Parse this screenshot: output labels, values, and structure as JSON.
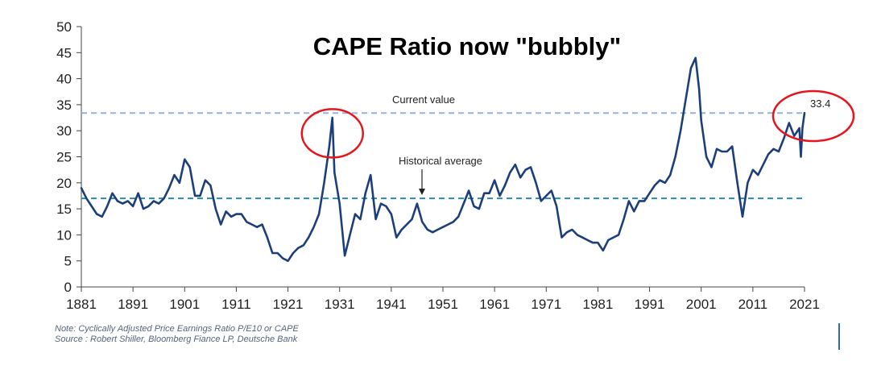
{
  "chart_data": {
    "type": "line",
    "title": "CAPE Ratio now \"bubbly\"",
    "xlabel": "",
    "ylabel": "",
    "xlim": [
      1881,
      2021
    ],
    "ylim": [
      0,
      50
    ],
    "x_ticks": [
      "1881",
      "1891",
      "1901",
      "1911",
      "1921",
      "1931",
      "1941",
      "1951",
      "1961",
      "1971",
      "1981",
      "1991",
      "2001",
      "2011",
      "2021"
    ],
    "y_ticks": [
      0,
      5,
      10,
      15,
      20,
      25,
      30,
      35,
      40,
      45,
      50
    ],
    "grid": false,
    "colors": {
      "series": "#1c3f7c",
      "current_line": "#8fb4e0",
      "average_line": "#2a8bb0",
      "circles": "#e8141c"
    },
    "series": [
      {
        "points": [
          [
            1881,
            19.0
          ],
          [
            1882,
            17.0
          ],
          [
            1883,
            15.5
          ],
          [
            1884,
            14.0
          ],
          [
            1885,
            13.5
          ],
          [
            1886,
            15.5
          ],
          [
            1887,
            18.0
          ],
          [
            1888,
            16.5
          ],
          [
            1889,
            16.0
          ],
          [
            1890,
            16.5
          ],
          [
            1891,
            15.5
          ],
          [
            1892,
            18.0
          ],
          [
            1893,
            15.0
          ],
          [
            1894,
            15.5
          ],
          [
            1895,
            16.5
          ],
          [
            1896,
            16.0
          ],
          [
            1897,
            17.0
          ],
          [
            1898,
            19.0
          ],
          [
            1899,
            21.5
          ],
          [
            1900,
            20.0
          ],
          [
            1901,
            24.5
          ],
          [
            1902,
            23.0
          ],
          [
            1903,
            17.5
          ],
          [
            1904,
            17.5
          ],
          [
            1905,
            20.5
          ],
          [
            1906,
            19.5
          ],
          [
            1907,
            15.0
          ],
          [
            1908,
            12.0
          ],
          [
            1909,
            14.5
          ],
          [
            1910,
            13.5
          ],
          [
            1911,
            14.0
          ],
          [
            1912,
            14.0
          ],
          [
            1913,
            12.5
          ],
          [
            1914,
            12.0
          ],
          [
            1915,
            11.5
          ],
          [
            1916,
            12.0
          ],
          [
            1917,
            9.5
          ],
          [
            1918,
            6.5
          ],
          [
            1919,
            6.5
          ],
          [
            1920,
            5.5
          ],
          [
            1921,
            5.0
          ],
          [
            1922,
            6.5
          ],
          [
            1923,
            7.5
          ],
          [
            1924,
            8.0
          ],
          [
            1925,
            9.5
          ],
          [
            1926,
            11.5
          ],
          [
            1927,
            14.0
          ],
          [
            1928,
            20.0
          ],
          [
            1929,
            27.0
          ],
          [
            1929.6,
            32.5
          ],
          [
            1930,
            22.0
          ],
          [
            1931,
            16.0
          ],
          [
            1932,
            6.0
          ],
          [
            1933,
            10.0
          ],
          [
            1934,
            14.0
          ],
          [
            1935,
            13.0
          ],
          [
            1936,
            18.0
          ],
          [
            1937,
            21.5
          ],
          [
            1938,
            13.0
          ],
          [
            1939,
            16.0
          ],
          [
            1940,
            15.5
          ],
          [
            1941,
            14.0
          ],
          [
            1942,
            9.5
          ],
          [
            1943,
            11.0
          ],
          [
            1944,
            12.0
          ],
          [
            1945,
            13.0
          ],
          [
            1946,
            16.0
          ],
          [
            1947,
            12.5
          ],
          [
            1948,
            11.0
          ],
          [
            1949,
            10.5
          ],
          [
            1950,
            11.0
          ],
          [
            1951,
            11.5
          ],
          [
            1952,
            12.0
          ],
          [
            1953,
            12.5
          ],
          [
            1954,
            13.5
          ],
          [
            1955,
            16.0
          ],
          [
            1956,
            18.5
          ],
          [
            1957,
            15.5
          ],
          [
            1958,
            15.0
          ],
          [
            1959,
            18.0
          ],
          [
            1960,
            18.0
          ],
          [
            1961,
            20.5
          ],
          [
            1962,
            17.5
          ],
          [
            1963,
            19.5
          ],
          [
            1964,
            22.0
          ],
          [
            1965,
            23.5
          ],
          [
            1966,
            21.0
          ],
          [
            1967,
            22.5
          ],
          [
            1968,
            23.0
          ],
          [
            1969,
            20.0
          ],
          [
            1970,
            16.5
          ],
          [
            1971,
            17.5
          ],
          [
            1972,
            18.5
          ],
          [
            1973,
            15.5
          ],
          [
            1974,
            9.5
          ],
          [
            1975,
            10.5
          ],
          [
            1976,
            11.0
          ],
          [
            1977,
            10.0
          ],
          [
            1978,
            9.5
          ],
          [
            1979,
            9.0
          ],
          [
            1980,
            8.5
          ],
          [
            1981,
            8.5
          ],
          [
            1982,
            7.0
          ],
          [
            1983,
            9.0
          ],
          [
            1984,
            9.5
          ],
          [
            1985,
            10.0
          ],
          [
            1986,
            13.0
          ],
          [
            1987,
            16.5
          ],
          [
            1988,
            14.5
          ],
          [
            1989,
            16.5
          ],
          [
            1990,
            16.5
          ],
          [
            1991,
            18.0
          ],
          [
            1992,
            19.5
          ],
          [
            1993,
            20.5
          ],
          [
            1994,
            20.0
          ],
          [
            1995,
            21.5
          ],
          [
            1996,
            25.0
          ],
          [
            1997,
            30.0
          ],
          [
            1998,
            36.0
          ],
          [
            1999,
            42.0
          ],
          [
            1999.9,
            44.0
          ],
          [
            2000.6,
            38.0
          ],
          [
            2001,
            32.0
          ],
          [
            2002,
            25.0
          ],
          [
            2003,
            23.0
          ],
          [
            2004,
            26.5
          ],
          [
            2005,
            26.0
          ],
          [
            2006,
            26.0
          ],
          [
            2007,
            27.0
          ],
          [
            2008,
            20.0
          ],
          [
            2009,
            13.5
          ],
          [
            2010,
            20.0
          ],
          [
            2011,
            22.5
          ],
          [
            2012,
            21.5
          ],
          [
            2013,
            23.5
          ],
          [
            2014,
            25.5
          ],
          [
            2015,
            26.5
          ],
          [
            2016,
            26.0
          ],
          [
            2017,
            28.5
          ],
          [
            2018,
            31.5
          ],
          [
            2019,
            29.0
          ],
          [
            2020,
            30.5
          ],
          [
            2020.3,
            25.0
          ],
          [
            2020.6,
            30.5
          ],
          [
            2021,
            33.4
          ]
        ]
      }
    ],
    "reference_lines": [
      {
        "label": "Current value",
        "y": 33.4
      },
      {
        "label": "Historical average",
        "y": 17.0
      }
    ],
    "current_value_label": "33.4"
  },
  "footer": {
    "note": "Note: Cyclically Adjusted Price Earnings Ratio P/E10 or CAPE",
    "source": "Source : Robert Shiller, Bloomberg Fiance LP, Deutsche Bank"
  }
}
